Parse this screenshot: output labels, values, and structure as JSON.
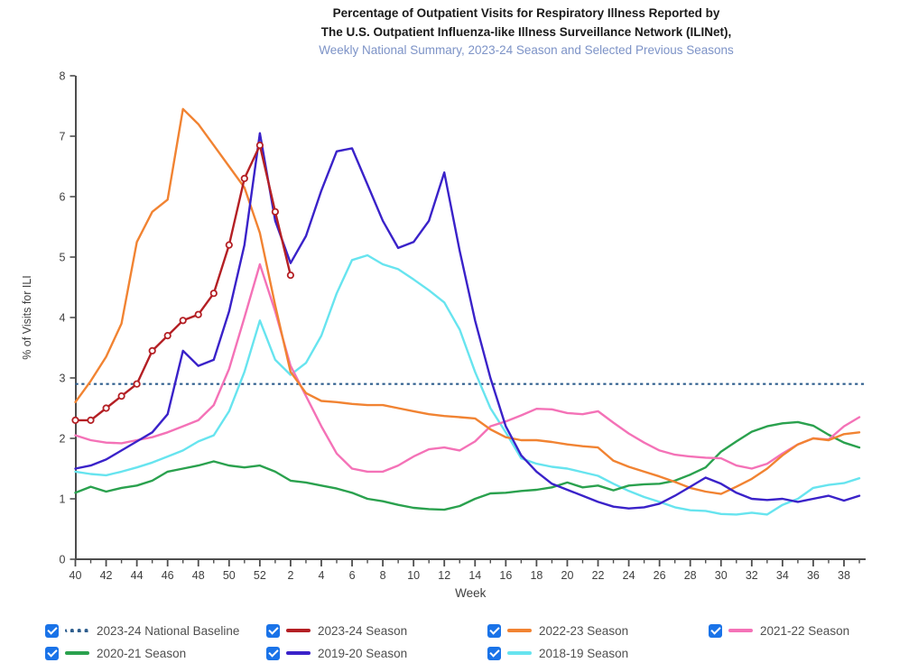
{
  "title": {
    "line1": "Percentage of Outpatient Visits for Respiratory Illness Reported by",
    "line2": "The U.S. Outpatient Influenza-like Illness Surveillance Network (ILINet),",
    "subtitle": "Weekly National Summary, 2023-24 Season and Selected Previous Seasons"
  },
  "chart_data": {
    "type": "line",
    "title": "Percentage of Outpatient Visits for Respiratory Illness (ILINet)",
    "xlabel": "Week",
    "ylabel": "% of Visits for ILI",
    "ylim": [
      0,
      8
    ],
    "yticks": [
      0,
      1,
      2,
      3,
      4,
      5,
      6,
      7,
      8
    ],
    "grid": false,
    "legend_position": "bottom",
    "week_labels": [
      40,
      41,
      42,
      43,
      44,
      45,
      46,
      47,
      48,
      49,
      50,
      51,
      52,
      1,
      2,
      3,
      4,
      5,
      6,
      7,
      8,
      9,
      10,
      11,
      12,
      13,
      14,
      15,
      16,
      17,
      18,
      19,
      20,
      21,
      22,
      23,
      24,
      25,
      26,
      27,
      28,
      29,
      30,
      31,
      32,
      33,
      34,
      35,
      36,
      37,
      38,
      39
    ],
    "baseline": {
      "name": "2023-24 National Baseline",
      "value": 2.9,
      "color": "#2e5e8e",
      "style": "dotted"
    },
    "series": [
      {
        "name": "2018-19 Season",
        "color": "#67e4ef",
        "markers": false,
        "values": [
          1.45,
          1.41,
          1.39,
          1.45,
          1.52,
          1.6,
          1.7,
          1.8,
          1.95,
          2.05,
          2.45,
          3.1,
          3.95,
          3.3,
          3.05,
          3.25,
          3.7,
          4.4,
          4.95,
          5.03,
          4.88,
          4.8,
          4.63,
          4.45,
          4.25,
          3.8,
          3.1,
          2.5,
          2.1,
          1.67,
          1.58,
          1.53,
          1.5,
          1.44,
          1.38,
          1.25,
          1.13,
          1.03,
          0.95,
          0.86,
          0.81,
          0.8,
          0.75,
          0.74,
          0.77,
          0.74,
          0.9,
          1.0,
          1.18,
          1.23,
          1.26,
          1.34
        ]
      },
      {
        "name": "2020-21 Season",
        "color": "#2aa14e",
        "markers": false,
        "values": [
          1.1,
          1.2,
          1.12,
          1.18,
          1.22,
          1.3,
          1.45,
          1.5,
          1.55,
          1.62,
          1.55,
          1.52,
          1.55,
          1.45,
          1.3,
          1.27,
          1.22,
          1.17,
          1.1,
          1.0,
          0.96,
          0.9,
          0.85,
          0.83,
          0.82,
          0.88,
          1.0,
          1.09,
          1.1,
          1.13,
          1.15,
          1.19,
          1.27,
          1.19,
          1.22,
          1.14,
          1.22,
          1.24,
          1.25,
          1.3,
          1.4,
          1.52,
          1.78,
          1.95,
          2.11,
          2.2,
          2.25,
          2.27,
          2.21,
          2.06,
          1.93,
          1.85
        ]
      },
      {
        "name": "2021-22 Season",
        "color": "#f472b7",
        "markers": false,
        "values": [
          2.05,
          1.97,
          1.93,
          1.92,
          1.97,
          2.02,
          2.1,
          2.2,
          2.3,
          2.55,
          3.15,
          4.0,
          4.88,
          4.1,
          3.2,
          2.7,
          2.2,
          1.75,
          1.5,
          1.45,
          1.45,
          1.55,
          1.7,
          1.82,
          1.85,
          1.8,
          1.95,
          2.2,
          2.28,
          2.38,
          2.49,
          2.48,
          2.42,
          2.4,
          2.45,
          2.26,
          2.08,
          1.93,
          1.8,
          1.73,
          1.7,
          1.68,
          1.67,
          1.55,
          1.5,
          1.58,
          1.75,
          1.9,
          2.0,
          1.98,
          2.2,
          2.35
        ]
      },
      {
        "name": "2022-23 Season",
        "color": "#f18332",
        "markers": false,
        "values": [
          2.6,
          2.95,
          3.35,
          3.9,
          5.25,
          5.75,
          5.95,
          7.45,
          7.2,
          6.85,
          6.5,
          6.15,
          5.4,
          4.2,
          3.1,
          2.75,
          2.62,
          2.6,
          2.57,
          2.55,
          2.55,
          2.5,
          2.45,
          2.4,
          2.37,
          2.35,
          2.33,
          2.15,
          2.02,
          1.97,
          1.97,
          1.94,
          1.9,
          1.87,
          1.85,
          1.63,
          1.53,
          1.45,
          1.37,
          1.28,
          1.18,
          1.12,
          1.08,
          1.2,
          1.33,
          1.5,
          1.72,
          1.9,
          2.0,
          1.97,
          2.07,
          2.1
        ]
      },
      {
        "name": "2019-20 Season",
        "color": "#3a22c9",
        "markers": false,
        "values": [
          1.5,
          1.55,
          1.65,
          1.8,
          1.95,
          2.1,
          2.4,
          3.45,
          3.2,
          3.3,
          4.1,
          5.2,
          7.05,
          5.6,
          4.9,
          5.35,
          6.1,
          6.75,
          6.8,
          6.2,
          5.6,
          5.15,
          5.25,
          5.6,
          6.4,
          5.1,
          3.95,
          3.0,
          2.2,
          1.72,
          1.45,
          1.25,
          1.15,
          1.05,
          0.95,
          0.87,
          0.84,
          0.86,
          0.92,
          1.05,
          1.2,
          1.35,
          1.25,
          1.1,
          1.0,
          0.98,
          1.0,
          0.95,
          1.0,
          1.05,
          0.97,
          1.05
        ]
      },
      {
        "name": "2023-24 Season",
        "color": "#b41f24",
        "markers": true,
        "values": [
          2.3,
          2.3,
          2.5,
          2.7,
          2.9,
          3.45,
          3.7,
          3.95,
          4.05,
          4.4,
          5.2,
          6.3,
          6.85,
          5.75,
          4.7,
          null,
          null,
          null,
          null,
          null,
          null,
          null,
          null,
          null,
          null,
          null,
          null,
          null,
          null,
          null,
          null,
          null,
          null,
          null,
          null,
          null,
          null,
          null,
          null,
          null,
          null,
          null,
          null,
          null,
          null,
          null,
          null,
          null,
          null,
          null,
          null,
          null
        ]
      }
    ]
  },
  "legend": {
    "items": [
      {
        "label": "2023-24 National Baseline",
        "color": "#2e5e8e",
        "dotted": true
      },
      {
        "label": "2023-24 Season",
        "color": "#b41f24",
        "dotted": false
      },
      {
        "label": "2022-23 Season",
        "color": "#f18332",
        "dotted": false
      },
      {
        "label": "2021-22 Season",
        "color": "#f472b7",
        "dotted": false
      },
      {
        "label": "2020-21 Season",
        "color": "#2aa14e",
        "dotted": false
      },
      {
        "label": "2019-20 Season",
        "color": "#3a22c9",
        "dotted": false
      },
      {
        "label": "2018-19 Season",
        "color": "#67e4ef",
        "dotted": false
      }
    ]
  }
}
